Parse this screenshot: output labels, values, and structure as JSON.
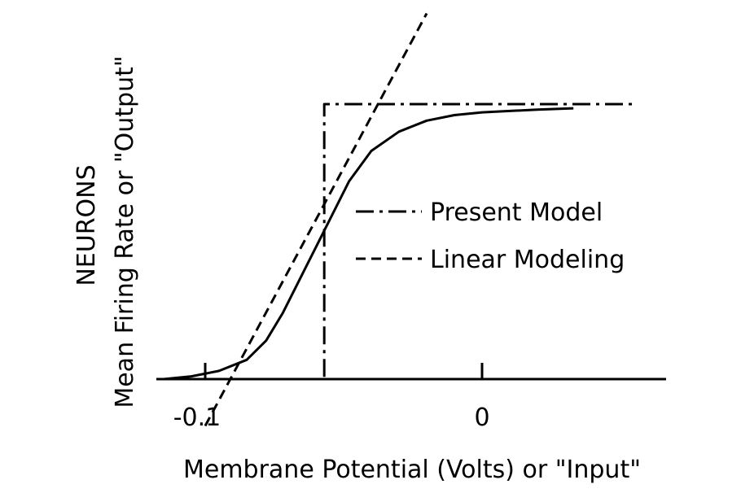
{
  "chart_data": {
    "type": "line",
    "title": "",
    "xlabel": "Membrane Potential (Volts) or \"Input\"",
    "ylabel_line1": "NEURONS",
    "ylabel_line2": "Mean Firing Rate or \"Output\"",
    "x_ticks": [
      {
        "value": -0.1,
        "label": "-0.1"
      },
      {
        "value": 0,
        "label": "0"
      }
    ],
    "xlim": [
      -0.12,
      0.06
    ],
    "ylim": [
      0,
      1.05
    ],
    "grid": false,
    "legend_position": "right-center",
    "series": [
      {
        "name": "",
        "style": "solid",
        "x": [
          -0.115,
          -0.105,
          -0.095,
          -0.085,
          -0.078,
          -0.072,
          -0.066,
          -0.06,
          -0.054,
          -0.048,
          -0.04,
          -0.03,
          -0.02,
          -0.01,
          0.0,
          0.01,
          0.02,
          0.033
        ],
        "y": [
          0.0,
          0.01,
          0.03,
          0.07,
          0.14,
          0.24,
          0.36,
          0.48,
          0.6,
          0.72,
          0.83,
          0.9,
          0.94,
          0.96,
          0.97,
          0.975,
          0.98,
          0.985
        ]
      },
      {
        "name": "Present Model",
        "style": "dashdot",
        "x": [
          -0.115,
          -0.057,
          -0.057,
          0.055
        ],
        "y": [
          0,
          0,
          1.0,
          1.0
        ]
      },
      {
        "name": "Linear Modeling",
        "style": "dashed",
        "x": [
          -0.1,
          -0.02
        ],
        "y": [
          -0.17,
          1.33
        ]
      }
    ]
  }
}
